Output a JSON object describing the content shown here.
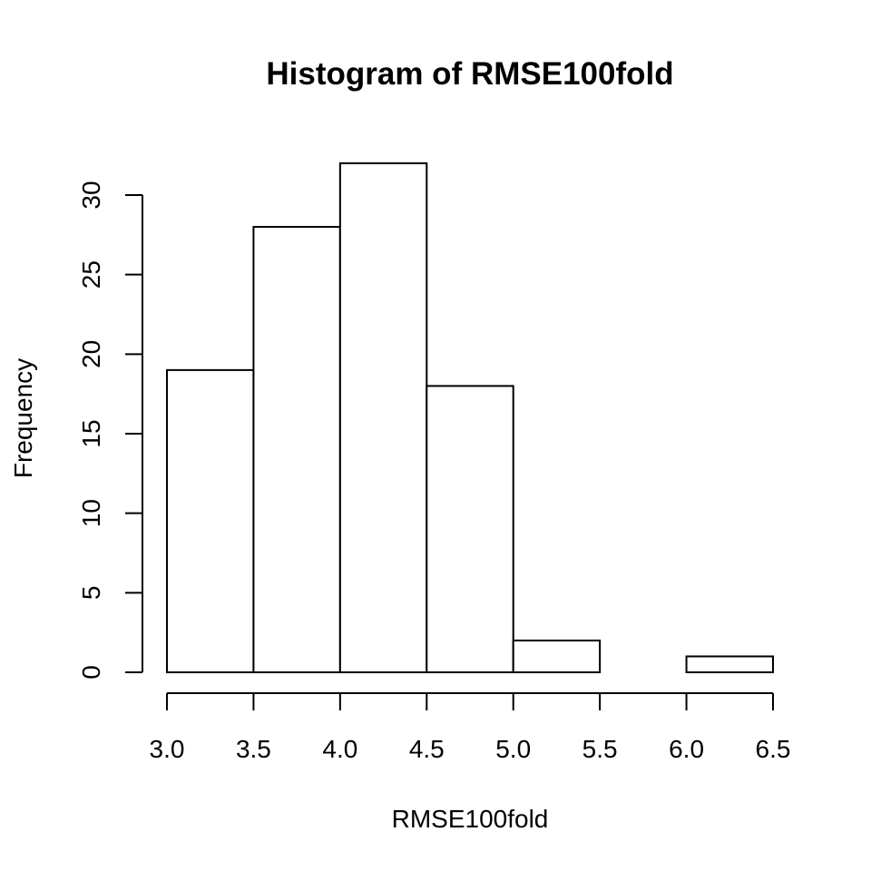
{
  "chart_data": {
    "type": "bar",
    "title": "Histogram of RMSE100fold",
    "xlabel": "RMSE100fold",
    "ylabel": "Frequency",
    "bins": [
      {
        "start": 3.0,
        "end": 3.5,
        "count": 19
      },
      {
        "start": 3.5,
        "end": 4.0,
        "count": 28
      },
      {
        "start": 4.0,
        "end": 4.5,
        "count": 32
      },
      {
        "start": 4.5,
        "end": 5.0,
        "count": 18
      },
      {
        "start": 5.0,
        "end": 5.5,
        "count": 2
      },
      {
        "start": 5.5,
        "end": 6.0,
        "count": 0
      },
      {
        "start": 6.0,
        "end": 6.5,
        "count": 1
      }
    ],
    "xlim": [
      3.0,
      6.5
    ],
    "ylim": [
      0,
      32
    ],
    "x_ticks": [
      "3.0",
      "3.5",
      "4.0",
      "4.5",
      "5.0",
      "5.5",
      "6.0",
      "6.5"
    ],
    "y_ticks": [
      "0",
      "5",
      "10",
      "15",
      "20",
      "25",
      "30"
    ],
    "grid": false,
    "legend": "none"
  }
}
